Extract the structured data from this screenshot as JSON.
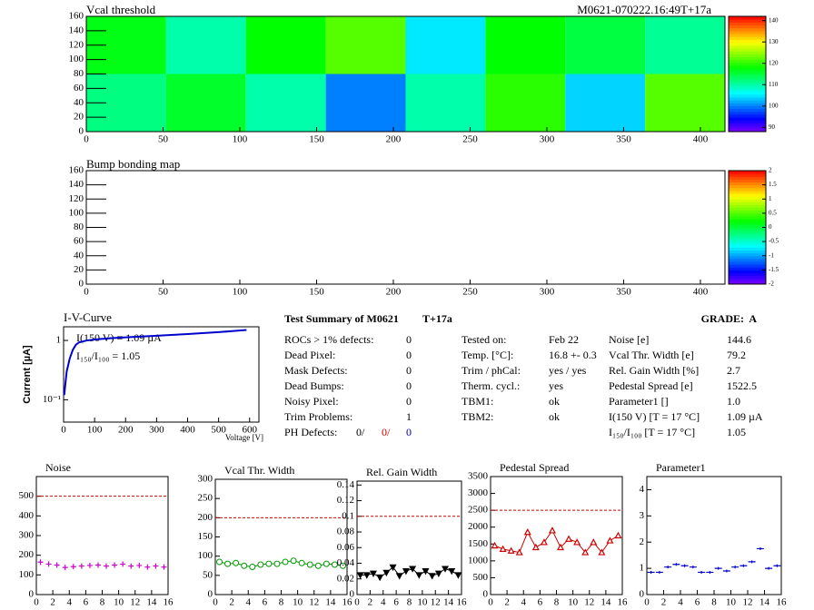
{
  "chart_data": [
    {
      "type": "heatmap",
      "title": "Vcal threshold",
      "label": "M0621-070222.16:49T+17a",
      "x_bins": [
        0,
        52,
        104,
        156,
        208,
        260,
        312,
        364,
        416
      ],
      "y_bins": [
        0,
        80,
        160
      ],
      "values": [
        [
          112,
          116,
          110,
          100,
          110,
          120,
          104,
          122
        ],
        [
          117,
          110,
          118,
          122,
          105,
          118,
          115,
          111
        ]
      ],
      "xlim": [
        0,
        416
      ],
      "ylim": [
        0,
        160
      ],
      "xticks": [
        0,
        50,
        100,
        150,
        200,
        250,
        300,
        350,
        400
      ],
      "yticks": [
        0,
        20,
        40,
        60,
        80,
        100,
        120,
        140,
        160
      ],
      "zlim": [
        88,
        142
      ],
      "zticks": [
        90,
        100,
        110,
        120,
        130,
        140
      ]
    },
    {
      "type": "heatmap",
      "title": "Bump bonding map",
      "x_bins": [],
      "y_bins": [],
      "values": [],
      "xlim": [
        0,
        416
      ],
      "ylim": [
        0,
        160
      ],
      "xticks": [
        0,
        50,
        100,
        150,
        200,
        250,
        300,
        350,
        400
      ],
      "yticks": [
        0,
        20,
        40,
        60,
        80,
        100,
        120,
        140,
        160
      ],
      "zlim": [
        -2,
        2
      ],
      "zticks": [
        -2,
        -1.5,
        -1,
        -0.5,
        0,
        0.5,
        1,
        1.5,
        2
      ]
    },
    {
      "type": "line",
      "title": "I-V-Curve",
      "xlabel": "Voltage [V]",
      "ylabel": "Current [µA]",
      "annotations": [
        "I(150 V) = 1.09 µA",
        "I₁₅₀/I₁₀₀ =  1.05"
      ],
      "x": [
        2,
        5,
        10,
        20,
        30,
        40,
        50,
        75,
        100,
        150,
        200,
        300,
        400,
        500,
        590
      ],
      "values": [
        0.12,
        0.17,
        0.3,
        0.5,
        0.7,
        0.85,
        0.93,
        1.0,
        1.04,
        1.09,
        1.13,
        1.2,
        1.28,
        1.38,
        1.5
      ],
      "color": "#0000cc",
      "log_y": true,
      "xlim": [
        0,
        630
      ],
      "ylim": [
        0.042,
        1.7
      ],
      "xticks": [
        0,
        100,
        200,
        300,
        400,
        500,
        600
      ],
      "yticks": [
        {
          "value": 0.1,
          "label": "10⁻¹"
        },
        1
      ]
    },
    {
      "type": "scatter",
      "title": "Noise",
      "x": [
        0.5,
        1.5,
        2.5,
        3.5,
        4.5,
        5.5,
        6.5,
        7.5,
        8.5,
        9.5,
        10.5,
        11.5,
        12.5,
        13.5,
        14.5,
        15.5
      ],
      "values": [
        165,
        155,
        150,
        138,
        142,
        145,
        148,
        150,
        145,
        150,
        155,
        145,
        148,
        140,
        145,
        140
      ],
      "color": "#cc00cc",
      "marker": "cross",
      "connect": false,
      "reference": 500,
      "xlim": [
        0,
        16
      ],
      "ylim": [
        0,
        600
      ],
      "xticks": [
        0,
        2,
        4,
        6,
        8,
        10,
        12,
        14,
        16
      ],
      "yticks": [
        0,
        100,
        200,
        300,
        400,
        500
      ]
    },
    {
      "type": "scatter",
      "title": "Vcal Thr. Width",
      "x": [
        0.5,
        1.5,
        2.5,
        3.5,
        4.5,
        5.5,
        6.5,
        7.5,
        8.5,
        9.5,
        10.5,
        11.5,
        12.5,
        13.5,
        14.5,
        15.5
      ],
      "values": [
        85,
        80,
        82,
        75,
        72,
        78,
        80,
        80,
        85,
        88,
        82,
        78,
        75,
        80,
        78,
        75
      ],
      "color": "#009900",
      "marker": "circle-open",
      "connect": true,
      "reference": 200,
      "xlim": [
        0,
        16
      ],
      "ylim": [
        0,
        300
      ],
      "xticks": [
        0,
        2,
        4,
        6,
        8,
        10,
        12,
        14,
        16
      ],
      "yticks": [
        0,
        50,
        100,
        150,
        200,
        250,
        300
      ]
    },
    {
      "type": "scatter",
      "title": "Rel. Gain Width",
      "x": [
        0.5,
        1.5,
        2.5,
        3.5,
        4.5,
        5.5,
        6.5,
        7.5,
        8.5,
        9.5,
        10.5,
        11.5,
        12.5,
        13.5,
        14.5,
        15.5
      ],
      "values": [
        0.025,
        0.025,
        0.027,
        0.022,
        0.028,
        0.035,
        0.024,
        0.03,
        0.033,
        0.025,
        0.03,
        0.024,
        0.027,
        0.033,
        0.03,
        0.025
      ],
      "color": "#000000",
      "marker": "triangle-down",
      "connect": true,
      "reference": 0.1,
      "xlim": [
        0,
        16
      ],
      "ylim": [
        0,
        0.145
      ],
      "xticks": [
        0,
        2,
        4,
        6,
        8,
        10,
        12,
        14,
        16
      ],
      "yticks": [
        0,
        0.02,
        0.04,
        0.06,
        0.08,
        0.1,
        0.12,
        0.14
      ]
    },
    {
      "type": "scatter",
      "title": "Pedestal Spread",
      "x": [
        0.5,
        1.5,
        2.5,
        3.5,
        4.5,
        5.5,
        6.5,
        7.5,
        8.5,
        9.5,
        10.5,
        11.5,
        12.5,
        13.5,
        14.5,
        15.5
      ],
      "values": [
        1450,
        1350,
        1300,
        1250,
        1850,
        1400,
        1550,
        1900,
        1400,
        1650,
        1550,
        1250,
        1550,
        1250,
        1600,
        1750
      ],
      "color": "#cc0000",
      "marker": "triangle-up-open",
      "connect": true,
      "reference": 2500,
      "xlim": [
        0,
        16
      ],
      "ylim": [
        0,
        3500
      ],
      "xticks": [
        0,
        2,
        4,
        6,
        8,
        10,
        12,
        14,
        16
      ],
      "yticks": [
        0,
        500,
        1000,
        1500,
        2000,
        2500,
        3000,
        3500
      ]
    },
    {
      "type": "scatter",
      "title": "Parameter1",
      "x": [
        0.5,
        1.5,
        2.5,
        3.5,
        4.5,
        5.5,
        6.5,
        7.5,
        8.5,
        9.5,
        10.5,
        11.5,
        12.5,
        13.5,
        14.5,
        15.5
      ],
      "values": [
        0.85,
        0.85,
        1.05,
        1.15,
        1.1,
        1.05,
        0.85,
        0.85,
        1.0,
        0.9,
        1.05,
        1.1,
        1.25,
        1.75,
        1.0,
        1.1
      ],
      "color": "#0000cc",
      "marker": "hline",
      "connect": false,
      "xlim": [
        0,
        16
      ],
      "ylim": [
        0,
        4.5
      ],
      "xticks": [
        0,
        2,
        4,
        6,
        8,
        10,
        12,
        14,
        16
      ],
      "yticks": [
        0,
        1,
        2,
        3,
        4
      ]
    }
  ],
  "summary": {
    "title": "Test Summary of M0621",
    "tag": "T+17a",
    "grade": "GRADE:  A",
    "defects": [
      {
        "label": "ROCs > 1% defects:",
        "value": 0
      },
      {
        "label": "Dead Pixel:",
        "value": 0
      },
      {
        "label": "Mask Defects:",
        "value": 0
      },
      {
        "label": "Dead Bumps:",
        "value": 0
      },
      {
        "label": "Noisy Pixel:",
        "value": 0
      },
      {
        "label": "Trim Problems:",
        "value": 1
      }
    ],
    "ph_defects": {
      "label": "PH Defects:",
      "values": [
        "0/",
        "0/",
        "0"
      ],
      "colors": [
        "#000000",
        "#cc0000",
        "#0000cc"
      ]
    },
    "conditions": [
      {
        "label": "Tested on:",
        "value": "Feb 22"
      },
      {
        "label": "Temp. [°C]:",
        "value": "16.8 +- 0.3"
      },
      {
        "label": "Trim / phCal:",
        "value": "yes / yes"
      },
      {
        "label": "Therm. cycl.:",
        "value": "yes"
      },
      {
        "label": "TBM1:",
        "value": "ok"
      },
      {
        "label": "TBM2:",
        "value": "ok"
      }
    ],
    "results": [
      {
        "label": "Noise [e]",
        "value": "144.6"
      },
      {
        "label": "Vcal Thr. Width [e]",
        "value": "79.2"
      },
      {
        "label": "Rel. Gain Width [%]",
        "value": "2.7"
      },
      {
        "label": "Pedestal Spread [e]",
        "value": "1522.5"
      },
      {
        "label": "Parameter1 []",
        "value": "1.0"
      },
      {
        "label": "I(150 V)  [T = 17 °C]",
        "value": "1.09 µA"
      },
      {
        "label": "I₁₅₀/I₁₀₀  [T = 17 °C]",
        "value": "1.05"
      }
    ]
  }
}
